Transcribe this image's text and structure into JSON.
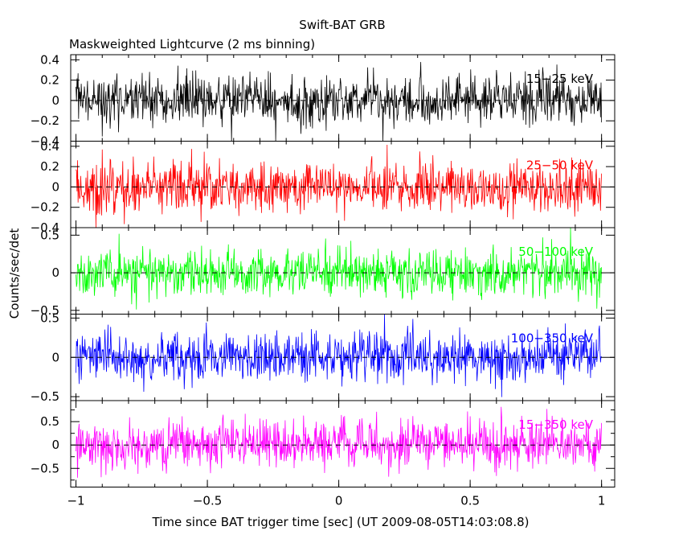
{
  "figure": {
    "title": "Swift-BAT GRB",
    "subtitle": "Maskweighted Lightcurve (2 ms binning)",
    "ylabel": "Counts/sec/det",
    "xlabel": "Time since BAT trigger time [sec] (UT 2009-08-05T14:03:08.8)"
  },
  "chart_data": {
    "type": "line",
    "x_range": [
      -1.02,
      1.05
    ],
    "x_ticks": [
      -1,
      -0.5,
      0,
      0.5,
      1
    ],
    "x_tick_labels": [
      "−1",
      "−0.5",
      "0",
      "0.5",
      "1"
    ],
    "x_data_range": [
      -1.0,
      1.0
    ],
    "bin_width_s": 0.002,
    "grid": false,
    "reference_line_y": 0,
    "panels": [
      {
        "name": "15−25 keV",
        "color": "#000000",
        "ylim": [
          -0.4,
          0.45
        ],
        "y_ticks": [
          0.4,
          0.2,
          0,
          -0.2,
          -0.4
        ],
        "y_tick_labels": [
          "0.4",
          "0.2",
          "0",
          "−0.2",
          "−0.4"
        ],
        "noise_sigma": 0.12
      },
      {
        "name": "25−50 keV",
        "color": "#ff0000",
        "ylim": [
          -0.4,
          0.45
        ],
        "y_ticks": [
          0.4,
          0.2,
          0,
          -0.2,
          -0.4
        ],
        "y_tick_labels": [
          "0.4",
          "0.2",
          "0",
          "−0.2",
          "−0.4"
        ],
        "noise_sigma": 0.13
      },
      {
        "name": "50−100 keV",
        "color": "#00ff00",
        "ylim": [
          -0.55,
          0.6
        ],
        "y_ticks": [
          0.5,
          0,
          -0.5
        ],
        "y_tick_labels": [
          "0.5",
          "0",
          "−0.5"
        ],
        "noise_sigma": 0.16
      },
      {
        "name": "100−350 keV",
        "color": "#0000ff",
        "ylim": [
          -0.55,
          0.55
        ],
        "y_ticks": [
          0.5,
          0,
          -0.5
        ],
        "y_tick_labels": [
          "0.5",
          "0",
          "−0.5"
        ],
        "noise_sigma": 0.15
      },
      {
        "name": "15−350 keV",
        "color": "#ff00ff",
        "ylim": [
          -0.9,
          0.95
        ],
        "y_ticks": [
          0.5,
          0,
          -0.5
        ],
        "y_tick_labels": [
          "0.5",
          "0",
          "−0.5"
        ],
        "y_minor_ticks": [
          0.75,
          0.25,
          -0.25,
          -0.75
        ],
        "noise_sigma": 0.25
      }
    ]
  }
}
